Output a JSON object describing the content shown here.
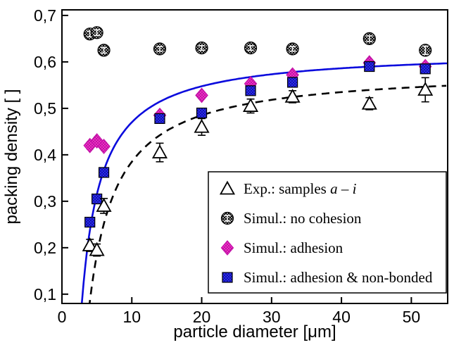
{
  "figure": {
    "background": "#ffffff",
    "frame_color": "#000000"
  },
  "chart_data": {
    "type": "scatter",
    "title": "",
    "xlabel": "particle diameter [μm]",
    "ylabel": "packing density [ ]",
    "xlim": [
      0,
      55.2
    ],
    "ylim": [
      0.08,
      0.712
    ],
    "grid": false,
    "decimal_separator": ",",
    "x_ticks": {
      "values": [
        0,
        10,
        20,
        30,
        40,
        50
      ],
      "labels": [
        "0",
        "10",
        "20",
        "30",
        "40",
        "50"
      ]
    },
    "y_ticks": {
      "values": [
        0.1,
        0.2,
        0.3,
        0.4,
        0.5,
        0.6,
        0.7
      ],
      "labels": [
        "0,1",
        "0,2",
        "0,3",
        "0,4",
        "0,5",
        "0,6",
        "0,7"
      ]
    },
    "series": [
      {
        "id": "no_cohesion",
        "label": "Simul.: no cohesion",
        "label_parts": [
          {
            "text": "Simul.: no cohesion",
            "italic": false
          }
        ],
        "marker": "circle-dotted",
        "color": "#000000",
        "edge": "#000000",
        "pattern": {
          "bg": "#000000",
          "dot": "#ffffff"
        },
        "x": [
          4,
          5,
          6,
          14,
          20,
          27,
          33,
          44,
          52
        ],
        "y": [
          0.66,
          0.663,
          0.625,
          0.628,
          0.63,
          0.63,
          0.628,
          0.65,
          0.625
        ],
        "yerr": [
          0.006,
          0.006,
          0.006,
          0.005,
          0.005,
          0.005,
          0.005,
          0.006,
          0.009
        ]
      },
      {
        "id": "adhesion",
        "label": "Simul.: adhesion",
        "label_parts": [
          {
            "text": "Simul.: adhesion",
            "italic": false
          }
        ],
        "marker": "diamond-patterned",
        "color": "#ee22c8",
        "edge": "#c311a8",
        "pattern": {
          "bg": "#ee2cc6",
          "dot": "#9c0b85"
        },
        "x": [
          4,
          5,
          6,
          14,
          20,
          27,
          33,
          44,
          52
        ],
        "y": [
          0.42,
          0.43,
          0.418,
          0.485,
          0.528,
          0.553,
          0.572,
          0.598,
          0.59
        ],
        "yerr": [
          0.008,
          0.008,
          0.008,
          0.007,
          0.007,
          0.007,
          0.007,
          0.007,
          0.008
        ]
      },
      {
        "id": "adhesion_nonbonded",
        "label": "Simul.: adhesion & non-bonded",
        "label_parts": [
          {
            "text": "Simul.: adhesion & non-bonded",
            "italic": false
          }
        ],
        "marker": "square-patterned",
        "color": "#2b2bea",
        "edge": "#000000",
        "pattern": {
          "bg": "#2b2bea",
          "dot": "#000080"
        },
        "x": [
          4,
          5,
          6,
          14,
          20,
          27,
          33,
          44,
          52
        ],
        "y": [
          0.255,
          0.305,
          0.362,
          0.478,
          0.49,
          0.538,
          0.556,
          0.59,
          0.585
        ],
        "yerr": [
          0.01,
          0.01,
          0.01,
          0.008,
          0.008,
          0.008,
          0.008,
          0.008,
          0.01
        ]
      },
      {
        "id": "exp",
        "label": "Exp.: samples a – i",
        "label_parts": [
          {
            "text": "Exp.: samples ",
            "italic": false
          },
          {
            "text": "a – i",
            "italic": true
          }
        ],
        "marker": "triangle-open",
        "color": "#000000",
        "edge": "#000000",
        "fill": "#ffffff",
        "x": [
          4,
          5,
          6,
          14,
          20,
          27,
          33,
          44,
          52
        ],
        "y": [
          0.205,
          0.195,
          0.29,
          0.405,
          0.46,
          0.505,
          0.525,
          0.51,
          0.54
        ],
        "yerr": [
          0.013,
          0.013,
          0.016,
          0.02,
          0.018,
          0.015,
          0.013,
          0.013,
          0.026
        ]
      }
    ],
    "fits": [
      {
        "id": "fit_nonbonded",
        "style": "solid",
        "color": "#0b0bdd",
        "model": "y = a - b/x",
        "a": 0.625,
        "b": 1.55,
        "x_range": [
          2.6,
          55.2
        ]
      },
      {
        "id": "fit_exp",
        "style": "dashed",
        "color": "#000000",
        "model": "y = a - b/x",
        "a": 0.585,
        "b": 2.0,
        "x_range": [
          3.5,
          55.2
        ]
      }
    ],
    "legend": {
      "position": "lower right",
      "border_color": "#000000",
      "entries": [
        "exp",
        "no_cohesion",
        "adhesion",
        "adhesion_nonbonded"
      ]
    }
  }
}
